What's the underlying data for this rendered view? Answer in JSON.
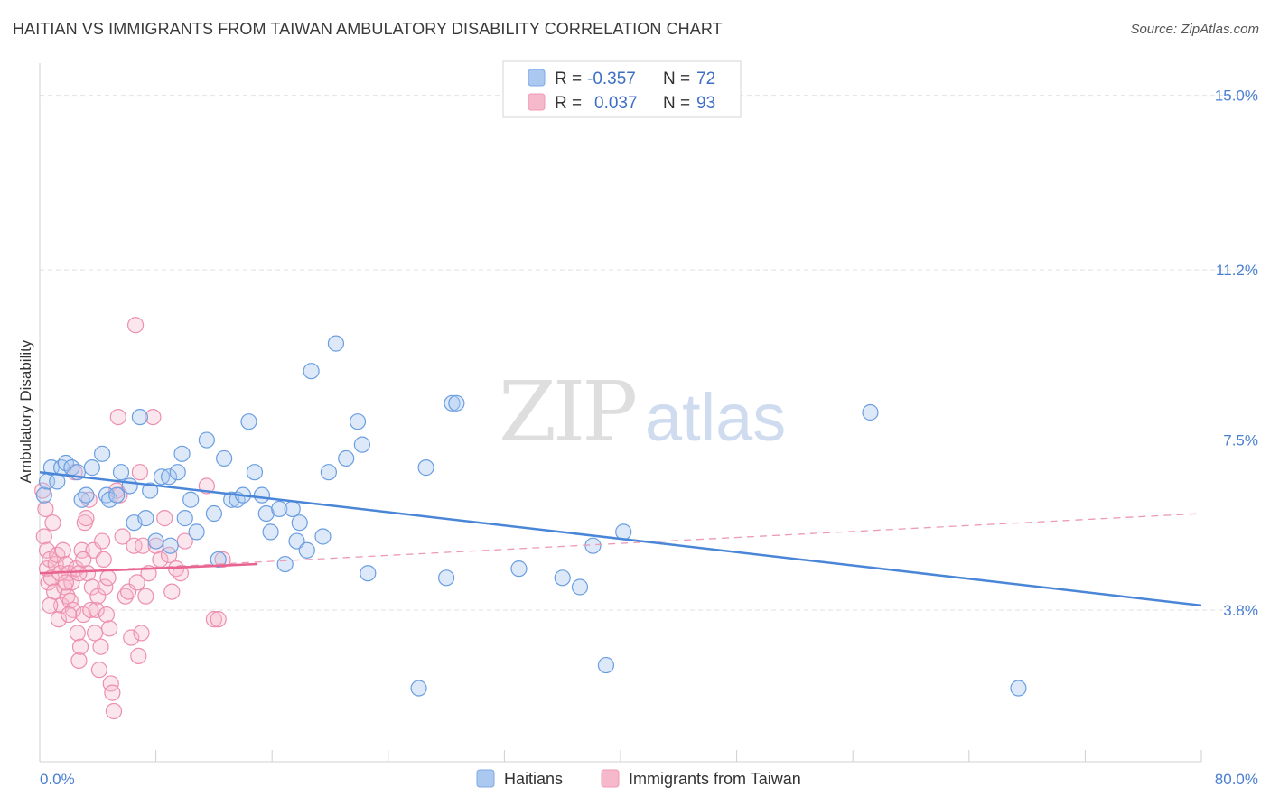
{
  "header": {
    "title": "HAITIAN VS IMMIGRANTS FROM TAIWAN AMBULATORY DISABILITY CORRELATION CHART",
    "source": "Source: ZipAtlas.com"
  },
  "watermark": {
    "zip": "ZIP",
    "atlas": "atlas"
  },
  "legend_top": {
    "rows": [
      {
        "r_label": "R =",
        "r_value": "-0.357",
        "n_label": "N =",
        "n_value": "72",
        "color": "#aac8f0"
      },
      {
        "r_label": "R =",
        "r_value": "0.037",
        "n_label": "N =",
        "n_value": "93",
        "color": "#f6b8cb"
      }
    ]
  },
  "legend_bottom": {
    "items": [
      {
        "label": "Haitians",
        "color": "#aac8f0"
      },
      {
        "label": "Immigrants from Taiwan",
        "color": "#f6b8cb"
      }
    ]
  },
  "chart_data": {
    "type": "scatter",
    "title": "HAITIAN VS IMMIGRANTS FROM TAIWAN AMBULATORY DISABILITY CORRELATION CHART",
    "xlabel": "",
    "ylabel": "Ambulatory Disability",
    "xlim": [
      0,
      80
    ],
    "ylim": [
      0.5,
      15.7
    ],
    "x_tick_labels": [
      "0.0%",
      "80.0%"
    ],
    "y_ticks": [
      3.8,
      7.5,
      11.2,
      15.0
    ],
    "y_tick_labels": [
      "3.8%",
      "7.5%",
      "11.2%",
      "15.0%"
    ],
    "grid": true,
    "colors": {
      "haitians": "#4a86d8",
      "taiwan": "#e8638f"
    },
    "series": [
      {
        "name": "Haitians",
        "trend": {
          "x": [
            0,
            80
          ],
          "y": [
            6.8,
            3.9
          ]
        },
        "points": [
          [
            0.3,
            6.3
          ],
          [
            0.5,
            6.6
          ],
          [
            0.8,
            6.9
          ],
          [
            1.2,
            6.6
          ],
          [
            1.5,
            6.9
          ],
          [
            1.8,
            7.0
          ],
          [
            2.2,
            6.9
          ],
          [
            2.6,
            6.8
          ],
          [
            2.9,
            6.2
          ],
          [
            3.2,
            6.3
          ],
          [
            3.6,
            6.9
          ],
          [
            4.3,
            7.2
          ],
          [
            4.6,
            6.3
          ],
          [
            4.8,
            6.2
          ],
          [
            5.3,
            6.3
          ],
          [
            5.6,
            6.8
          ],
          [
            6.2,
            6.5
          ],
          [
            6.5,
            5.7
          ],
          [
            6.9,
            8.0
          ],
          [
            7.3,
            5.8
          ],
          [
            7.6,
            6.4
          ],
          [
            8.0,
            5.3
          ],
          [
            8.4,
            6.7
          ],
          [
            8.9,
            6.7
          ],
          [
            9.0,
            5.2
          ],
          [
            9.5,
            6.8
          ],
          [
            9.8,
            7.2
          ],
          [
            10.0,
            5.8
          ],
          [
            10.4,
            6.2
          ],
          [
            10.8,
            5.5
          ],
          [
            11.5,
            7.5
          ],
          [
            12.0,
            5.9
          ],
          [
            12.3,
            4.9
          ],
          [
            12.7,
            7.1
          ],
          [
            13.2,
            6.2
          ],
          [
            13.6,
            6.2
          ],
          [
            14.0,
            6.3
          ],
          [
            14.4,
            7.9
          ],
          [
            14.8,
            6.8
          ],
          [
            15.3,
            6.3
          ],
          [
            15.6,
            5.9
          ],
          [
            15.9,
            5.5
          ],
          [
            16.5,
            6.0
          ],
          [
            16.9,
            4.8
          ],
          [
            17.4,
            6.0
          ],
          [
            17.7,
            5.3
          ],
          [
            17.9,
            5.7
          ],
          [
            18.4,
            5.1
          ],
          [
            18.7,
            9.0
          ],
          [
            19.5,
            5.4
          ],
          [
            19.9,
            6.8
          ],
          [
            20.4,
            9.6
          ],
          [
            21.1,
            7.1
          ],
          [
            21.9,
            7.9
          ],
          [
            22.2,
            7.4
          ],
          [
            22.6,
            4.6
          ],
          [
            26.1,
            2.1
          ],
          [
            26.6,
            6.9
          ],
          [
            28.0,
            4.5
          ],
          [
            28.4,
            8.3
          ],
          [
            28.7,
            8.3
          ],
          [
            33.0,
            4.7
          ],
          [
            36.0,
            4.5
          ],
          [
            37.2,
            4.3
          ],
          [
            38.1,
            5.2
          ],
          [
            39.0,
            2.6
          ],
          [
            40.2,
            5.5
          ],
          [
            57.2,
            8.1
          ],
          [
            67.4,
            2.1
          ]
        ]
      },
      {
        "name": "Immigrants from Taiwan",
        "trend": {
          "x": [
            0,
            15
          ],
          "y": [
            4.6,
            4.8
          ],
          "dashed_x": [
            0,
            80
          ],
          "dashed_y": [
            4.6,
            5.9
          ]
        },
        "points": [
          [
            0.2,
            6.4
          ],
          [
            0.3,
            5.4
          ],
          [
            0.4,
            6.0
          ],
          [
            0.5,
            5.1
          ],
          [
            0.5,
            4.7
          ],
          [
            0.6,
            4.4
          ],
          [
            0.7,
            4.9
          ],
          [
            0.8,
            4.5
          ],
          [
            0.9,
            5.7
          ],
          [
            1.0,
            4.2
          ],
          [
            1.1,
            4.8
          ],
          [
            1.2,
            5.0
          ],
          [
            1.3,
            3.6
          ],
          [
            1.4,
            4.6
          ],
          [
            1.5,
            3.9
          ],
          [
            1.6,
            5.1
          ],
          [
            1.7,
            4.3
          ],
          [
            1.8,
            4.8
          ],
          [
            1.9,
            4.1
          ],
          [
            2.0,
            4.6
          ],
          [
            2.1,
            4.0
          ],
          [
            2.2,
            4.4
          ],
          [
            2.3,
            3.8
          ],
          [
            2.4,
            6.8
          ],
          [
            2.5,
            4.7
          ],
          [
            2.6,
            3.3
          ],
          [
            2.7,
            2.7
          ],
          [
            2.8,
            3.0
          ],
          [
            2.9,
            5.1
          ],
          [
            3.0,
            3.7
          ],
          [
            3.1,
            5.7
          ],
          [
            3.2,
            5.8
          ],
          [
            3.3,
            4.6
          ],
          [
            3.4,
            6.2
          ],
          [
            3.5,
            3.8
          ],
          [
            3.6,
            4.3
          ],
          [
            3.7,
            5.1
          ],
          [
            3.8,
            3.3
          ],
          [
            3.9,
            3.8
          ],
          [
            4.0,
            4.1
          ],
          [
            4.1,
            2.5
          ],
          [
            4.2,
            3.0
          ],
          [
            4.3,
            5.3
          ],
          [
            4.4,
            4.9
          ],
          [
            4.5,
            4.3
          ],
          [
            4.6,
            3.7
          ],
          [
            4.7,
            4.5
          ],
          [
            4.8,
            3.4
          ],
          [
            4.9,
            2.2
          ],
          [
            5.0,
            2.0
          ],
          [
            5.1,
            1.6
          ],
          [
            5.3,
            6.4
          ],
          [
            5.5,
            6.3
          ],
          [
            5.7,
            5.4
          ],
          [
            5.9,
            4.1
          ],
          [
            6.1,
            4.2
          ],
          [
            6.3,
            3.2
          ],
          [
            6.5,
            5.2
          ],
          [
            6.7,
            4.4
          ],
          [
            6.9,
            6.8
          ],
          [
            7.1,
            5.2
          ],
          [
            7.3,
            4.1
          ],
          [
            7.5,
            4.6
          ],
          [
            7.8,
            8.0
          ],
          [
            8.0,
            5.2
          ],
          [
            8.3,
            4.9
          ],
          [
            8.6,
            5.8
          ],
          [
            8.9,
            5.0
          ],
          [
            9.1,
            4.2
          ],
          [
            9.4,
            4.7
          ],
          [
            9.7,
            4.6
          ],
          [
            10.0,
            5.3
          ],
          [
            11.5,
            6.5
          ],
          [
            12.0,
            3.6
          ],
          [
            12.3,
            3.6
          ],
          [
            12.6,
            4.9
          ],
          [
            6.6,
            10.0
          ],
          [
            6.8,
            2.8
          ],
          [
            7.0,
            3.3
          ],
          [
            5.4,
            8.0
          ],
          [
            1.8,
            4.4
          ],
          [
            2.0,
            3.7
          ],
          [
            2.7,
            4.6
          ],
          [
            3.0,
            4.9
          ],
          [
            0.7,
            3.9
          ]
        ]
      }
    ]
  }
}
